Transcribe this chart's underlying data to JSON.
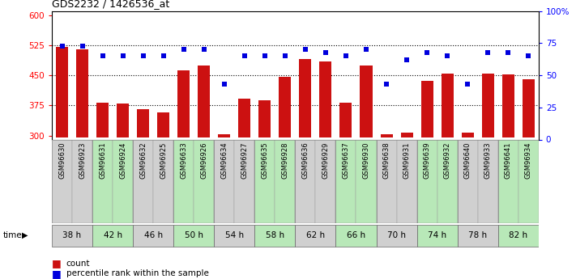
{
  "title": "GDS2232 / 1426536_at",
  "samples": [
    "GSM96630",
    "GSM96923",
    "GSM96631",
    "GSM96924",
    "GSM96632",
    "GSM96925",
    "GSM96633",
    "GSM96926",
    "GSM96634",
    "GSM96927",
    "GSM96635",
    "GSM96928",
    "GSM96636",
    "GSM96929",
    "GSM96637",
    "GSM96930",
    "GSM96638",
    "GSM96931",
    "GSM96639",
    "GSM96932",
    "GSM96640",
    "GSM96933",
    "GSM96641",
    "GSM96934"
  ],
  "counts": [
    520,
    515,
    382,
    380,
    365,
    358,
    462,
    475,
    303,
    392,
    388,
    447,
    490,
    485,
    382,
    475,
    303,
    307,
    437,
    455,
    307,
    455,
    452,
    440
  ],
  "percentiles": [
    73,
    73,
    65,
    65,
    65,
    65,
    70,
    70,
    43,
    65,
    65,
    65,
    70,
    68,
    65,
    70,
    43,
    62,
    68,
    65,
    43,
    68,
    68,
    65
  ],
  "time_groups": [
    {
      "label": "38 h",
      "color": "#d0d0d0",
      "indices": [
        0,
        1
      ]
    },
    {
      "label": "42 h",
      "color": "#b8e8b8",
      "indices": [
        2,
        3
      ]
    },
    {
      "label": "46 h",
      "color": "#d0d0d0",
      "indices": [
        4,
        5
      ]
    },
    {
      "label": "50 h",
      "color": "#b8e8b8",
      "indices": [
        6,
        7
      ]
    },
    {
      "label": "54 h",
      "color": "#d0d0d0",
      "indices": [
        8,
        9
      ]
    },
    {
      "label": "58 h",
      "color": "#b8e8b8",
      "indices": [
        10,
        11
      ]
    },
    {
      "label": "62 h",
      "color": "#d0d0d0",
      "indices": [
        12,
        13
      ]
    },
    {
      "label": "66 h",
      "color": "#b8e8b8",
      "indices": [
        14,
        15
      ]
    },
    {
      "label": "70 h",
      "color": "#d0d0d0",
      "indices": [
        16,
        17
      ]
    },
    {
      "label": "74 h",
      "color": "#b8e8b8",
      "indices": [
        18,
        19
      ]
    },
    {
      "label": "78 h",
      "color": "#d0d0d0",
      "indices": [
        20,
        21
      ]
    },
    {
      "label": "82 h",
      "color": "#b8e8b8",
      "indices": [
        22,
        23
      ]
    }
  ],
  "ylim_left": [
    290,
    610
  ],
  "ylim_right": [
    0,
    100
  ],
  "yticks_left": [
    300,
    375,
    450,
    525,
    600
  ],
  "yticks_right": [
    0,
    25,
    50,
    75,
    100
  ],
  "bar_color": "#cc1111",
  "dot_color": "#0000dd",
  "bar_bottom": 295,
  "background_color": "#ffffff",
  "plot_bg_color": "#ffffff"
}
